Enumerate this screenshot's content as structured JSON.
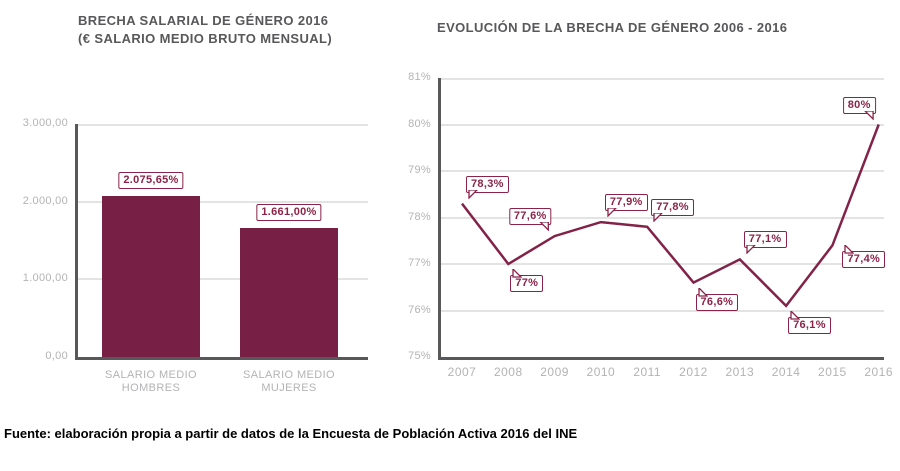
{
  "footer": {
    "source": "Fuente: elaboración propia a partir de datos de la Encuesta de Población Activa  2016 del INE"
  },
  "colors": {
    "bar": "#771f44",
    "line": "#832248",
    "callout": "#8b2348",
    "axis": "#58585a",
    "grid": "#e3e3e3",
    "tick": "#b3b3b5",
    "title": "#58585a"
  },
  "chart_data": [
    {
      "type": "bar",
      "title": "BRECHA SALARIAL DE GÉNERO 2016",
      "subtitle": "(€ SALARIO MEDIO BRUTO MENSUAL)",
      "categories": [
        "SALARIO MEDIO HOMBRES",
        "SALARIO MEDIO MUJERES"
      ],
      "values": [
        2075.65,
        1661.0
      ],
      "value_labels": [
        "2.075,65%",
        "1.661,00%"
      ],
      "xlabel": "",
      "ylabel": "",
      "ylim": [
        0,
        3000
      ],
      "yticks": [
        0,
        1000,
        2000,
        3000
      ],
      "ytick_labels": [
        "0,00",
        "1.000,00",
        "2.000,00",
        "3.000,00"
      ],
      "grid": true,
      "legend": "none"
    },
    {
      "type": "line",
      "title": "EVOLUCIÓN DE LA BRECHA DE GÉNERO 2006 - 2016",
      "x": [
        "2007",
        "2008",
        "2009",
        "2010",
        "2011",
        "2012",
        "2013",
        "2014",
        "2015",
        "2016"
      ],
      "values": [
        78.3,
        77.0,
        77.6,
        77.9,
        77.8,
        76.6,
        77.1,
        76.1,
        77.4,
        80.0
      ],
      "point_labels": [
        "78,3%",
        "77%",
        "77,6%",
        "77,9%",
        "77,8%",
        "76,6%",
        "77,1%",
        "76,1%",
        "77,4%",
        "80%"
      ],
      "label_positions": [
        "above-right",
        "below-right",
        "above-left",
        "above-right",
        "above-right",
        "below-right",
        "above-right",
        "below-right",
        "right-below",
        "above-left"
      ],
      "xlabel": "",
      "ylabel": "",
      "ylim": [
        75,
        81
      ],
      "yticks": [
        75,
        76,
        77,
        78,
        79,
        80,
        81
      ],
      "ytick_labels": [
        "75%",
        "76%",
        "77%",
        "78%",
        "79%",
        "80%",
        "81%"
      ],
      "grid": true,
      "legend": "none"
    }
  ]
}
